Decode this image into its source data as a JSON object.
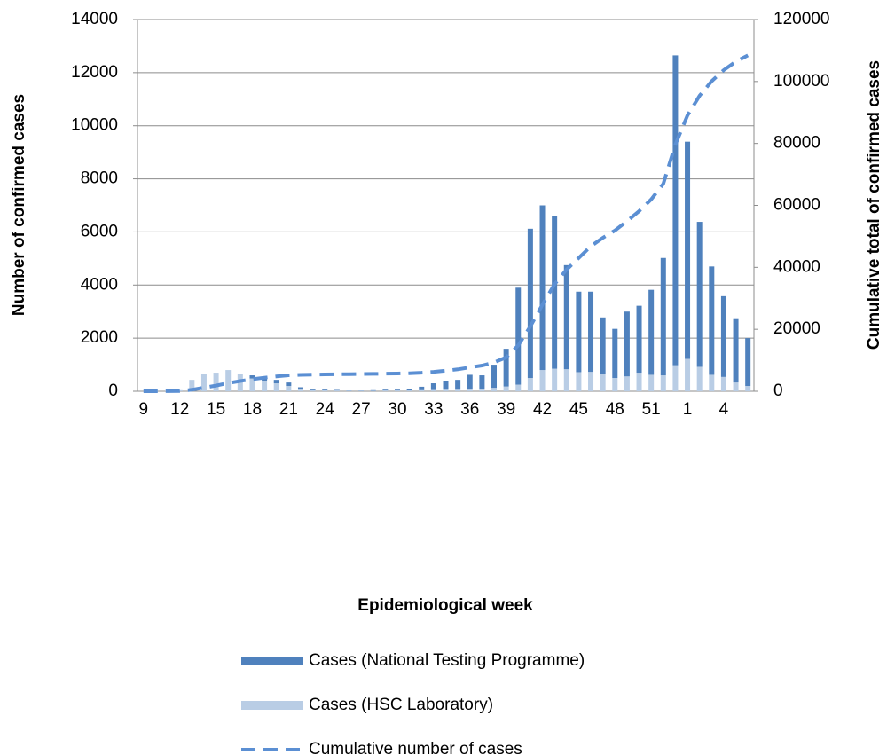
{
  "chart_data": {
    "type": "bar",
    "y_label": "Number of confirmed cases",
    "y2_label": "Cumulative total of confirmed cases",
    "x_label": "Epidemiological week",
    "categories": [
      "9",
      null,
      null,
      "12",
      null,
      null,
      "15",
      null,
      null,
      "18",
      null,
      null,
      "21",
      null,
      null,
      "24",
      null,
      null,
      "27",
      null,
      null,
      "30",
      null,
      null,
      "33",
      null,
      null,
      "36",
      null,
      null,
      "39",
      null,
      null,
      "42",
      null,
      null,
      "45",
      null,
      null,
      "48",
      null,
      null,
      "51",
      null,
      null,
      "1",
      null,
      null,
      "4",
      null,
      null
    ],
    "series": [
      {
        "name": "Cases (National Testing Programme)",
        "type": "bar",
        "color": "#4f81bd",
        "values": [
          0,
          0,
          0,
          0,
          0,
          0,
          0,
          0,
          0,
          120,
          100,
          130,
          130,
          70,
          40,
          40,
          20,
          10,
          10,
          20,
          30,
          30,
          50,
          130,
          250,
          320,
          370,
          540,
          520,
          870,
          1420,
          3650,
          5620,
          6200,
          5750,
          3920,
          3030,
          3020,
          2140,
          1850,
          2440,
          2520,
          3200,
          4420,
          11670,
          8180,
          5460,
          4080,
          3040,
          2420,
          1800
        ]
      },
      {
        "name": "Cases (HSC Laboratory)",
        "type": "bar",
        "color": "#b9cde5",
        "values": [
          0,
          5,
          10,
          40,
          430,
          660,
          700,
          800,
          640,
          480,
          400,
          300,
          200,
          80,
          40,
          40,
          30,
          20,
          20,
          20,
          30,
          30,
          30,
          40,
          50,
          60,
          60,
          80,
          80,
          130,
          180,
          250,
          500,
          800,
          850,
          830,
          720,
          730,
          640,
          500,
          560,
          700,
          620,
          600,
          980,
          1220,
          920,
          620,
          540,
          330,
          200
        ]
      },
      {
        "name": "Cumulative number of cases",
        "type": "line",
        "axis": "y2",
        "color": "#5b8fd3",
        "values": [
          0,
          5,
          15,
          55,
          485,
          1145,
          1845,
          2645,
          3285,
          3885,
          4385,
          4815,
          5145,
          5295,
          5375,
          5455,
          5505,
          5535,
          5565,
          5605,
          5665,
          5725,
          5805,
          5975,
          6275,
          6655,
          7085,
          7705,
          8305,
          9305,
          10905,
          14805,
          20925,
          27925,
          34525,
          39275,
          43025,
          46775,
          49555,
          51905,
          54905,
          58125,
          61945,
          66965,
          79615,
          89015,
          95395,
          100095,
          103675,
          106425,
          108425
        ]
      }
    ],
    "ylim": [
      0,
      14000
    ],
    "yticks": [
      0,
      2000,
      4000,
      6000,
      8000,
      10000,
      12000,
      14000
    ],
    "y2lim": [
      0,
      120000
    ],
    "y2ticks": [
      0,
      20000,
      40000,
      60000,
      80000,
      100000,
      120000
    ],
    "grid": true,
    "stacked": true,
    "legend": "bottom"
  }
}
